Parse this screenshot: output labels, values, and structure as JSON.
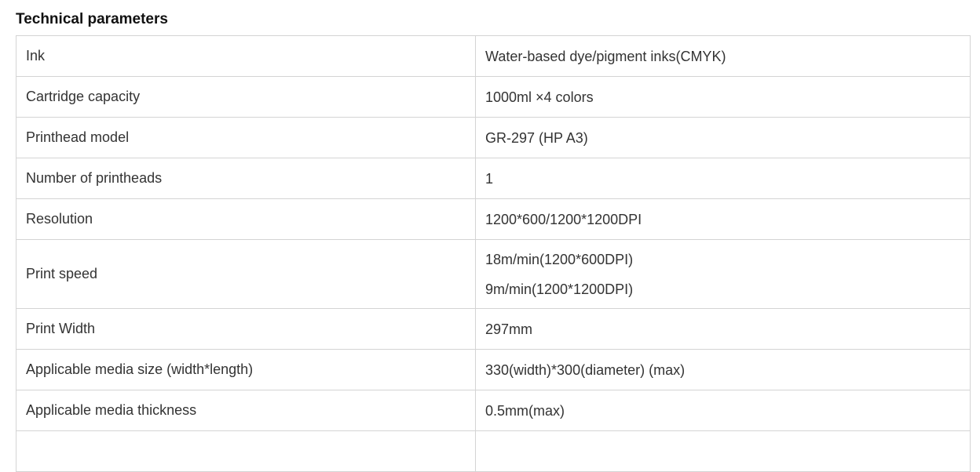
{
  "page": {
    "title": "Technical parameters"
  },
  "table": {
    "rows": [
      {
        "label": "Ink",
        "value_lines": [
          "Water-based dye/pigment inks(CMYK)"
        ]
      },
      {
        "label": "Cartridge capacity",
        "value_lines": [
          "1000ml ×4 colors"
        ]
      },
      {
        "label": "Printhead model",
        "value_lines": [
          "GR-297 (HP A3)"
        ]
      },
      {
        "label": "Number of printheads",
        "value_lines": [
          "1"
        ]
      },
      {
        "label": "Resolution",
        "value_lines": [
          "1200*600/1200*1200DPI"
        ]
      },
      {
        "label": "Print speed",
        "value_lines": [
          "18m/min(1200*600DPI)",
          "9m/min(1200*1200DPI)"
        ]
      },
      {
        "label": "Print Width",
        "value_lines": [
          "297mm"
        ]
      },
      {
        "label": "Applicable media size (width*length)",
        "value_lines": [
          "330(width)*300(diameter) (max)"
        ]
      },
      {
        "label": "Applicable media thickness",
        "value_lines": [
          "0.5mm(max)"
        ]
      },
      {
        "label": "",
        "value_lines": [
          ""
        ],
        "partial": true
      }
    ]
  },
  "colors": {
    "border": "#d4d4d4",
    "body_text": "#333333",
    "title_text": "#111111",
    "background": "#ffffff"
  }
}
